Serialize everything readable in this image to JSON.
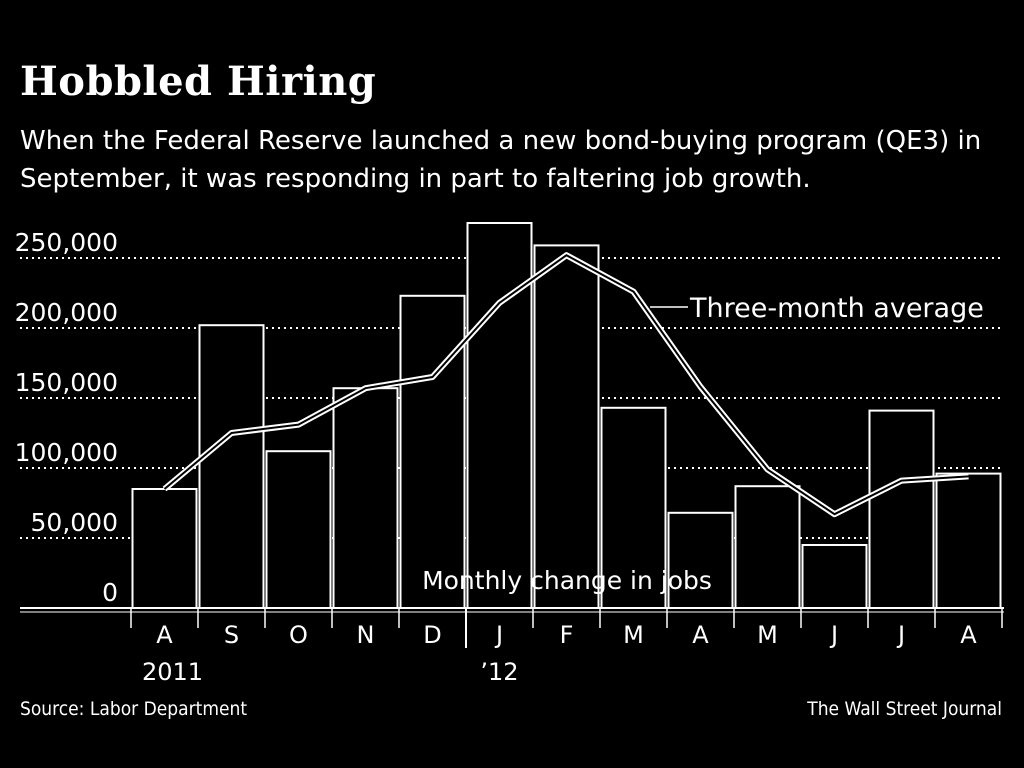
{
  "header": {
    "title": "Hobbled Hiring",
    "subtitle": "When the Federal Reserve launched a new bond-buying program (QE3) in September, it was responding in part to faltering job growth."
  },
  "footer": {
    "source": "Source: Labor Department",
    "credit": "The Wall Street Journal"
  },
  "chart_data": {
    "type": "bar",
    "categories": [
      "A",
      "S",
      "O",
      "N",
      "D",
      "J",
      "F",
      "M",
      "A",
      "M",
      "J",
      "J",
      "A"
    ],
    "year_labels": [
      {
        "category_index": 0,
        "label": "2011"
      },
      {
        "category_index": 5,
        "label": "’12"
      }
    ],
    "series": [
      {
        "name": "Monthly change in jobs",
        "type": "bar",
        "values": [
          85000,
          202000,
          112000,
          157000,
          223000,
          275000,
          259000,
          143000,
          68000,
          87000,
          45000,
          141000,
          96000
        ]
      },
      {
        "name": "Three-month average",
        "type": "line",
        "values": [
          85000,
          125000,
          131000,
          157000,
          165000,
          218000,
          252000,
          226000,
          158000,
          99000,
          67000,
          91000,
          94000
        ]
      }
    ],
    "yticks": [
      0,
      50000,
      100000,
      150000,
      200000,
      250000
    ],
    "ytick_labels": [
      "0",
      "50,000",
      "100,000",
      "150,000",
      "200,000",
      "250,000"
    ],
    "ylim": [
      0,
      280000
    ],
    "grid": true,
    "bar_label": "Monthly change in jobs",
    "line_label": "Three-month average"
  }
}
